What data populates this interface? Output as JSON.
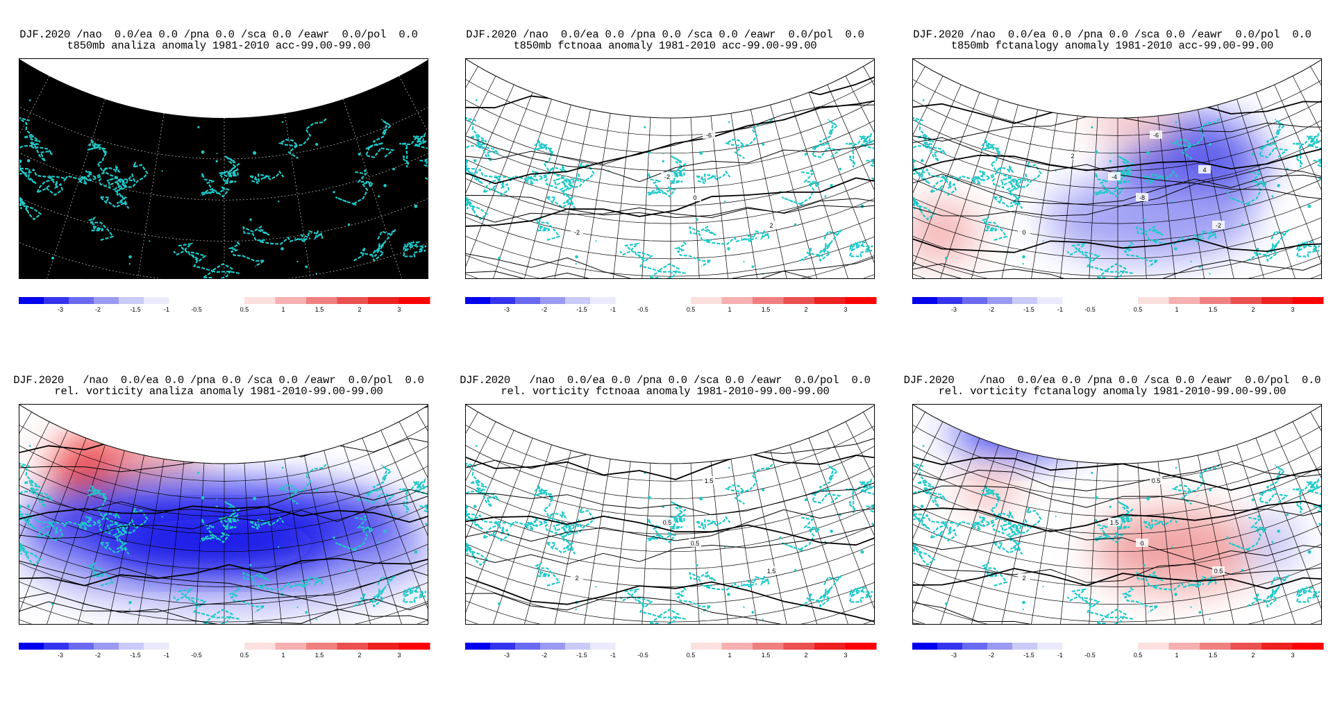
{
  "panels": [
    {
      "title1": "DJF.2020 /nao  0.0/ea 0.0 /pna 0.0 /sca 0.0 /eawr  0.0/pol  0.0",
      "title2": "t850mb analiza anomaly 1981-2010 acc-99.00-99.00",
      "mode": "black",
      "shading": [],
      "contours": []
    },
    {
      "title1": "DJF.2020 /nao  0.0/ea 0.0 /pna 0.0 /sca 0.0 /eawr  0.0/pol  0.0",
      "title2": "t850mb fctnoaa anomaly 1981-2010 acc-99.00-99.00",
      "mode": "grid",
      "shading": [],
      "contours": [
        {
          "label": "0"
        },
        {
          "label": "-6"
        },
        {
          "label": "-2"
        },
        {
          "label": "2"
        },
        {
          "label": "-2"
        }
      ]
    },
    {
      "title1": "DJF.2020 /nao  0.0/ea 0.0 /pna 0.0 /sca 0.0 /eawr  0.0/pol  0.0",
      "title2": "t850mb fctanalogy anomaly 1981-2010 acc-99.00-99.00",
      "mode": "grid",
      "shading": [
        {
          "color": "#7070f0"
        },
        {
          "color": "#5050e8"
        },
        {
          "color": "#a0a0f4"
        },
        {
          "color": "#f3b0b0"
        },
        {
          "color": "#f6c6c6"
        }
      ],
      "contours": [
        {
          "label": "-8"
        },
        {
          "label": "-6"
        },
        {
          "label": "-4"
        },
        {
          "label": "-2"
        },
        {
          "label": "0"
        },
        {
          "label": "2"
        },
        {
          "label": "4"
        }
      ]
    },
    {
      "title1": "DJF.2020   /nao  0.0/ea 0.0 /pna 0.0 /sca 0.0 /eawr  0.0/pol  0.0",
      "title2": "rel. vorticity analiza anomaly 1981-2010-99.00-99.00",
      "mode": "grid",
      "shading": [
        {
          "color": "#ee3a3a"
        },
        {
          "color": "#f39a9a"
        },
        {
          "color": "#a4a4f5"
        },
        {
          "color": "#3535ee"
        },
        {
          "color": "#0a0ae6"
        }
      ],
      "contours": []
    },
    {
      "title1": "DJF.2020   /nao  0.0/ea 0.0 /pna 0.0 /sca 0.0 /eawr  0.0/pol  0.0",
      "title2": "rel. vorticity fctnoaa anomaly 1981-2010-99.00-99.00",
      "mode": "grid",
      "shading": [],
      "contours": [
        {
          "label": "0.5"
        },
        {
          "label": "1.5"
        },
        {
          "label": "0.5"
        },
        {
          "label": "1.5"
        },
        {
          "label": "2"
        }
      ]
    },
    {
      "title1": "DJF.2020    /nao  0.0/ea 0.0 /pna 0.0 /sca 0.0 /eawr  0.0/pol  0.0",
      "title2": "rel. vorticity fctanalogy anomaly 1981-2010-99.00-99.00",
      "mode": "grid",
      "shading": [
        {
          "color": "#3333ee"
        },
        {
          "color": "#f2b3b3"
        },
        {
          "color": "#f0a0a0"
        },
        {
          "color": "#b8b8f6"
        }
      ],
      "contours": [
        {
          "label": "0"
        },
        {
          "label": "0.5"
        },
        {
          "label": "1.5"
        },
        {
          "label": "0.5"
        },
        {
          "label": "2"
        }
      ]
    }
  ],
  "colorbar": {
    "neg_colors": [
      "#0000ee",
      "#3434ee",
      "#6a6af0",
      "#9a9af2",
      "#cacaf8",
      "#eaeafc"
    ],
    "pos_colors": [
      "#fce0e0",
      "#f6b0b0",
      "#f08080",
      "#ea5050",
      "#ee2020",
      "#ff0000"
    ],
    "neg_ticks": [
      "-3",
      "-2",
      "-1.5",
      "-1",
      "-0.5"
    ],
    "pos_ticks": [
      "0.5",
      "1",
      "1.5",
      "2",
      "3"
    ]
  }
}
